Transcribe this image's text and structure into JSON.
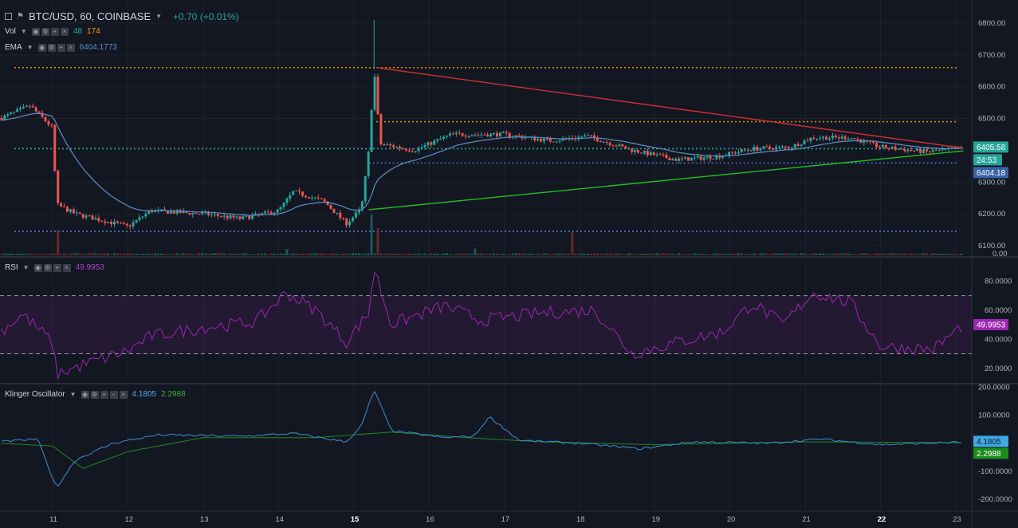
{
  "header": {
    "title": "BTC/USD, 60, COINBASE",
    "change": "+0.70 (+0.01%)"
  },
  "legends": {
    "vol": {
      "label": "Vol",
      "v1": "48",
      "v2": "174"
    },
    "ema": {
      "label": "EMA",
      "value": "6404.1773"
    },
    "rsi": {
      "label": "RSI",
      "value": "49.9953"
    },
    "klinger": {
      "label": "Klinger Oscillator",
      "v1": "4.1805",
      "v2": "2.2988"
    }
  },
  "colors": {
    "background": "#131722",
    "up": "#26a69a",
    "down": "#ef5350",
    "ema": "#5b8fc9",
    "rsi": "#9c27b0",
    "klinger": "#3f8fcf",
    "signal": "#1e8a1e",
    "resistance": "#d32f2f",
    "support": "#22c022",
    "orange": "#e68a00",
    "blue_dots": "#4a78d0"
  },
  "price_labels": {
    "last": "6405.58",
    "countdown": "24:53",
    "ema": "6404.18",
    "rsi": "49.9953",
    "klinger": "4.1805",
    "signal": "2.2988"
  },
  "chart_data": [
    {
      "type": "candlestick",
      "pane": "price",
      "symbol": "BTC/USD, 60, COINBASE",
      "ylim": [
        6070,
        6860
      ],
      "price_ticks": [
        "6800.00",
        "6700.00",
        "6600.00",
        "6500.00",
        "6300.00",
        "6200.00",
        "6100.00"
      ],
      "volume_ticks": [
        "0.00"
      ],
      "x_ticks": [
        "11",
        "12",
        "13",
        "14",
        "15",
        "16",
        "17",
        "18",
        "19",
        "20",
        "21",
        "22",
        "23"
      ],
      "x_tick_days": [
        11,
        12,
        13,
        14,
        15,
        16,
        17,
        18,
        19,
        20,
        21,
        22,
        23
      ],
      "xlim": [
        10.3,
        23.2
      ],
      "horizontal_levels": [
        {
          "price": 6660,
          "color": "orange"
        },
        {
          "price": 6490,
          "color": "orange",
          "from_day": 15.3
        },
        {
          "price": 6405,
          "color": "up"
        },
        {
          "price": 6360,
          "color": "blue_dots",
          "from_day": 15.2
        },
        {
          "price": 6145,
          "color": "blue_dots"
        }
      ],
      "trendlines": [
        {
          "name": "resistance",
          "from": [
            15.3,
            6660
          ],
          "to": [
            23.1,
            6407
          ]
        },
        {
          "name": "support",
          "from": [
            15.2,
            6213
          ],
          "to": [
            23.1,
            6398
          ]
        }
      ],
      "keypoints": [
        {
          "day": 10.3,
          "close": 6500
        },
        {
          "day": 10.7,
          "close": 6540
        },
        {
          "day": 11.0,
          "close": 6470
        },
        {
          "day": 11.05,
          "close": 6230
        },
        {
          "day": 11.3,
          "close": 6200
        },
        {
          "day": 12.0,
          "close": 6160
        },
        {
          "day": 12.3,
          "close": 6210
        },
        {
          "day": 13.0,
          "close": 6200
        },
        {
          "day": 13.5,
          "close": 6185
        },
        {
          "day": 14.0,
          "close": 6210
        },
        {
          "day": 14.2,
          "close": 6270
        },
        {
          "day": 14.6,
          "close": 6240
        },
        {
          "day": 14.9,
          "close": 6170
        },
        {
          "day": 15.1,
          "close": 6215
        },
        {
          "day": 15.2,
          "close": 6400
        },
        {
          "day": 15.27,
          "close": 6655
        },
        {
          "day": 15.35,
          "close": 6420
        },
        {
          "day": 15.8,
          "close": 6400
        },
        {
          "day": 16.3,
          "close": 6450
        },
        {
          "day": 17.0,
          "close": 6450
        },
        {
          "day": 17.6,
          "close": 6430
        },
        {
          "day": 18.1,
          "close": 6445
        },
        {
          "day": 18.7,
          "close": 6400
        },
        {
          "day": 19.3,
          "close": 6370
        },
        {
          "day": 19.8,
          "close": 6380
        },
        {
          "day": 20.3,
          "close": 6405
        },
        {
          "day": 20.8,
          "close": 6410
        },
        {
          "day": 21.1,
          "close": 6440
        },
        {
          "day": 21.6,
          "close": 6440
        },
        {
          "day": 22.0,
          "close": 6410
        },
        {
          "day": 22.6,
          "close": 6395
        },
        {
          "day": 23.1,
          "close": 6405
        }
      ],
      "volume_spikes": [
        {
          "day": 11.05,
          "value": 180
        },
        {
          "day": 15.25,
          "value": 300
        },
        {
          "day": 15.3,
          "value": 200
        },
        {
          "day": 17.9,
          "value": 170
        },
        {
          "day": 16.6,
          "value": 50
        },
        {
          "day": 14.1,
          "value": 45
        }
      ]
    },
    {
      "type": "line",
      "pane": "rsi",
      "series": [
        {
          "name": "RSI"
        }
      ],
      "ylim": [
        10,
        95
      ],
      "y_ticks": [
        "80.0000",
        "60.0000",
        "40.0000",
        "20.0000"
      ],
      "band": [
        30,
        70
      ],
      "keypoints": [
        {
          "day": 10.3,
          "value": 45
        },
        {
          "day": 10.6,
          "value": 57
        },
        {
          "day": 11.0,
          "value": 38
        },
        {
          "day": 11.05,
          "value": 16
        },
        {
          "day": 11.5,
          "value": 24
        },
        {
          "day": 12.0,
          "value": 32
        },
        {
          "day": 12.3,
          "value": 42
        },
        {
          "day": 13.0,
          "value": 48
        },
        {
          "day": 13.7,
          "value": 52
        },
        {
          "day": 14.1,
          "value": 72
        },
        {
          "day": 14.5,
          "value": 60
        },
        {
          "day": 14.9,
          "value": 38
        },
        {
          "day": 15.2,
          "value": 58
        },
        {
          "day": 15.27,
          "value": 89
        },
        {
          "day": 15.5,
          "value": 50
        },
        {
          "day": 16.2,
          "value": 63
        },
        {
          "day": 16.7,
          "value": 53
        },
        {
          "day": 17.5,
          "value": 58
        },
        {
          "day": 18.2,
          "value": 60
        },
        {
          "day": 18.7,
          "value": 30
        },
        {
          "day": 19.3,
          "value": 38
        },
        {
          "day": 19.9,
          "value": 45
        },
        {
          "day": 20.3,
          "value": 65
        },
        {
          "day": 20.7,
          "value": 50
        },
        {
          "day": 21.1,
          "value": 72
        },
        {
          "day": 21.6,
          "value": 65
        },
        {
          "day": 22.0,
          "value": 35
        },
        {
          "day": 22.7,
          "value": 33
        },
        {
          "day": 23.1,
          "value": 50
        }
      ]
    },
    {
      "type": "line",
      "pane": "klinger",
      "series": [
        {
          "name": "Klinger Oscillator"
        },
        {
          "name": "signal"
        }
      ],
      "ylim": [
        -240,
        210
      ],
      "y_ticks": [
        "200.0000",
        "100.0000",
        "-100.0000",
        "-200.0000"
      ],
      "x_ticks": [
        "11",
        "12",
        "13",
        "14",
        "15",
        "16",
        "17",
        "18",
        "19",
        "20",
        "21",
        "22",
        "23"
      ],
      "keypoints": [
        {
          "day": 10.3,
          "value": 5
        },
        {
          "day": 10.8,
          "value": 15
        },
        {
          "day": 11.05,
          "value": -160
        },
        {
          "day": 11.3,
          "value": -60
        },
        {
          "day": 11.8,
          "value": 0
        },
        {
          "day": 12.4,
          "value": 30
        },
        {
          "day": 13.5,
          "value": 25
        },
        {
          "day": 14.2,
          "value": 35
        },
        {
          "day": 14.9,
          "value": 5
        },
        {
          "day": 15.1,
          "value": 60
        },
        {
          "day": 15.27,
          "value": 190
        },
        {
          "day": 15.5,
          "value": 45
        },
        {
          "day": 16.2,
          "value": 20
        },
        {
          "day": 16.6,
          "value": 25
        },
        {
          "day": 16.8,
          "value": 95
        },
        {
          "day": 17.2,
          "value": 10
        },
        {
          "day": 18.0,
          "value": 0
        },
        {
          "day": 18.8,
          "value": -20
        },
        {
          "day": 19.5,
          "value": 5
        },
        {
          "day": 20.5,
          "value": 0
        },
        {
          "day": 21.2,
          "value": 15
        },
        {
          "day": 22.0,
          "value": -5
        },
        {
          "day": 23.1,
          "value": 4
        }
      ],
      "signal_keypoints": [
        {
          "day": 10.3,
          "value": 0
        },
        {
          "day": 11.0,
          "value": -10
        },
        {
          "day": 11.4,
          "value": -90
        },
        {
          "day": 12.0,
          "value": -30
        },
        {
          "day": 13.0,
          "value": 20
        },
        {
          "day": 14.5,
          "value": 20
        },
        {
          "day": 15.5,
          "value": 40
        },
        {
          "day": 16.5,
          "value": 20
        },
        {
          "day": 17.5,
          "value": 5
        },
        {
          "day": 19.0,
          "value": -5
        },
        {
          "day": 21.0,
          "value": 5
        },
        {
          "day": 23.1,
          "value": 2
        }
      ]
    }
  ]
}
